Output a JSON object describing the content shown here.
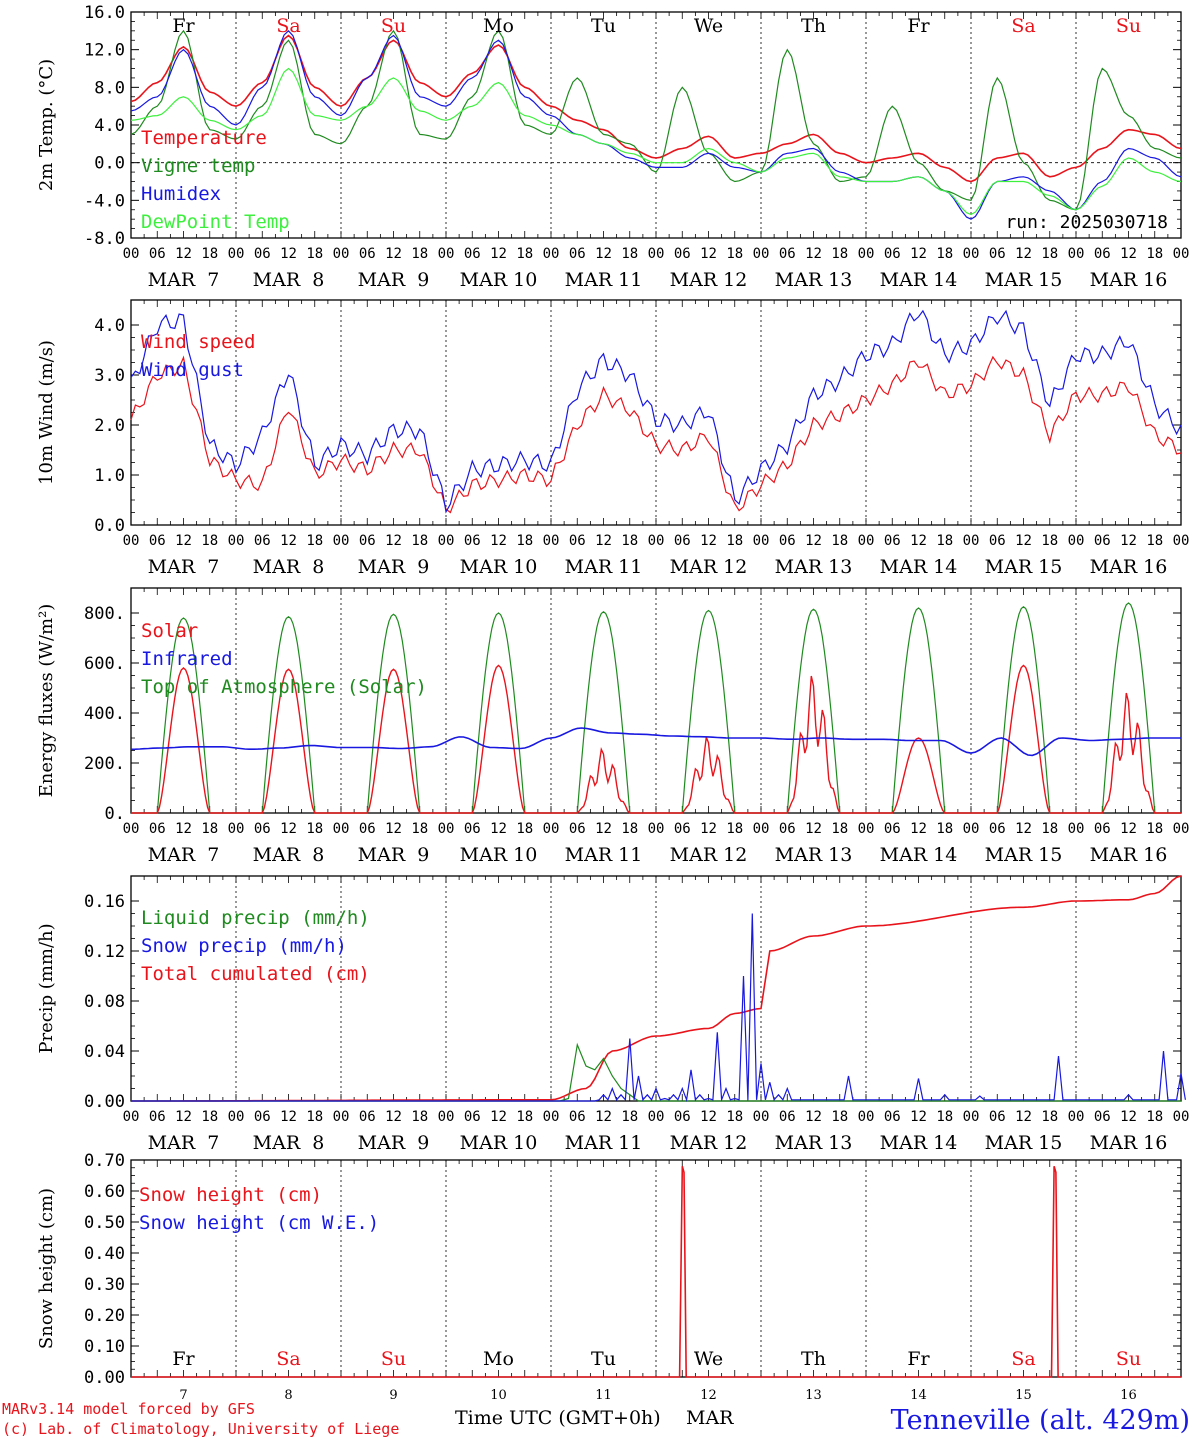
{
  "colors": {
    "red": "#e8141c",
    "green": "#1f8a1f",
    "blue": "#1818e0",
    "lightgreen": "#3ef03e",
    "black": "#000000"
  },
  "days": {
    "hour_ticks": [
      "00",
      "06",
      "12",
      "18",
      "00",
      "06",
      "12",
      "18",
      "00",
      "06",
      "12",
      "18",
      "00",
      "06",
      "12",
      "18",
      "00",
      "06",
      "12",
      "18",
      "00",
      "06",
      "12",
      "18",
      "00",
      "06",
      "12",
      "18",
      "00",
      "06",
      "12",
      "18",
      "00",
      "06",
      "12",
      "18",
      "00",
      "06",
      "12",
      "18",
      "00"
    ],
    "date_labels": [
      "MAR  7",
      "MAR  8",
      "MAR  9",
      "MAR 10",
      "MAR 11",
      "MAR 12",
      "MAR 13",
      "MAR 14",
      "MAR 15",
      "MAR 16"
    ],
    "weekday_labels": [
      "Fr",
      "Sa",
      "Su",
      "Mo",
      "Tu",
      "We",
      "Th",
      "Fr",
      "Sa",
      "Su"
    ],
    "weekday_colors": [
      "black",
      "red",
      "red",
      "black",
      "black",
      "black",
      "black",
      "black",
      "red",
      "red"
    ],
    "day_numbers": [
      "7",
      "8",
      "9",
      "10",
      "11",
      "12",
      "13",
      "14",
      "15",
      "16"
    ]
  },
  "footer": {
    "model_line": "MARv3.14 model forced by GFS",
    "credit_line": "(c) Lab. of Climatology, University of Liege",
    "xlabel": "Time UTC (GMT+0h)",
    "month": "MAR",
    "station": "Tenneville (alt. 429m)"
  },
  "chart_data": [
    {
      "type": "line",
      "ylabel": "2m Temp. (°C)",
      "ylim": [
        -8,
        16
      ],
      "yticks": [
        "16.0",
        "12.0",
        "8.0",
        "4.0",
        "0.0",
        "-4.0",
        "-8.0"
      ],
      "annotation": "run: 2025030718",
      "legend": [
        "Temperature",
        "Vigne temp",
        "Humidex",
        "DewPoint Temp"
      ],
      "x_hours": [
        0,
        6,
        12,
        18,
        24,
        30,
        36,
        42,
        48,
        54,
        60,
        66,
        72,
        78,
        84,
        90,
        96,
        102,
        108,
        114,
        120,
        126,
        132,
        138,
        144,
        150,
        156,
        162,
        168,
        174,
        180,
        186,
        192,
        198,
        204,
        210,
        216,
        222,
        228,
        234,
        240
      ],
      "series": [
        {
          "name": "Temperature",
          "color": "red",
          "values": [
            6.5,
            8.5,
            12.3,
            7.5,
            6.0,
            8.5,
            13.5,
            8.0,
            6.0,
            9.0,
            13.0,
            8.5,
            7.0,
            9.5,
            12.5,
            8.0,
            6.0,
            4.5,
            3.5,
            1.5,
            0.5,
            1.5,
            2.8,
            0.5,
            1.0,
            2.0,
            3.0,
            1.0,
            0.0,
            0.5,
            1.0,
            -0.5,
            -2.0,
            0.5,
            1.0,
            -1.5,
            -0.5,
            1.5,
            3.5,
            3.0,
            1.5
          ]
        },
        {
          "name": "Vigne temp",
          "color": "green",
          "values": [
            3.0,
            6.0,
            14.0,
            3.5,
            2.5,
            6.0,
            13.0,
            3.0,
            2.0,
            6.0,
            14.0,
            3.0,
            2.5,
            7.0,
            14.0,
            4.0,
            3.0,
            9.0,
            3.0,
            2.0,
            -1.0,
            8.0,
            1.0,
            -2.0,
            -1.0,
            12.0,
            2.0,
            -2.0,
            -1.5,
            6.0,
            0.0,
            -3.0,
            -4.0,
            9.0,
            0.0,
            -4.0,
            -5.0,
            10.0,
            5.0,
            1.5,
            0.5
          ]
        },
        {
          "name": "Humidex",
          "color": "blue",
          "values": [
            5.5,
            7.0,
            12.0,
            6.0,
            4.0,
            8.0,
            14.0,
            7.0,
            5.0,
            9.0,
            13.5,
            7.0,
            6.0,
            9.0,
            13.0,
            7.0,
            5.0,
            3.0,
            2.0,
            0.5,
            -0.5,
            -0.5,
            1.0,
            -0.5,
            -1.0,
            1.0,
            1.5,
            -1.0,
            -2.0,
            -2.0,
            -1.5,
            -3.0,
            -6.0,
            -2.0,
            -1.5,
            -3.0,
            -5.0,
            -2.0,
            1.5,
            0.5,
            -1.5
          ]
        },
        {
          "name": "DewPoint Temp",
          "color": "lightgreen",
          "values": [
            4.5,
            5.0,
            7.0,
            4.5,
            3.5,
            5.0,
            10.0,
            5.0,
            4.5,
            6.0,
            9.0,
            5.5,
            4.5,
            6.0,
            8.5,
            5.0,
            4.0,
            3.0,
            2.0,
            1.0,
            0.0,
            0.0,
            1.5,
            0.0,
            -1.0,
            0.5,
            1.0,
            -1.5,
            -2.0,
            -2.0,
            -1.5,
            -3.0,
            -5.5,
            -2.0,
            -2.0,
            -3.5,
            -5.0,
            -2.5,
            0.5,
            -1.0,
            -2.0
          ]
        }
      ]
    },
    {
      "type": "line",
      "ylabel": "10m Wind (m/s)",
      "ylim": [
        0,
        4.5
      ],
      "yticks": [
        "4.0",
        "3.0",
        "2.0",
        "1.0",
        "0.0"
      ],
      "legend": [
        "Wind speed",
        "Wind gust"
      ],
      "x_hours": [
        0,
        6,
        12,
        18,
        24,
        30,
        36,
        42,
        48,
        54,
        60,
        66,
        72,
        78,
        84,
        90,
        96,
        102,
        108,
        114,
        120,
        126,
        132,
        138,
        144,
        150,
        156,
        162,
        168,
        174,
        180,
        186,
        192,
        198,
        204,
        210,
        216,
        222,
        228,
        234,
        240
      ],
      "series": [
        {
          "name": "Wind speed",
          "color": "red",
          "values": [
            2.1,
            3.0,
            3.2,
            1.3,
            0.9,
            0.8,
            2.4,
            1.0,
            1.3,
            1.1,
            1.5,
            1.5,
            0.3,
            0.8,
            0.9,
            1.0,
            0.9,
            2.0,
            2.6,
            2.3,
            1.6,
            1.5,
            1.8,
            0.3,
            0.8,
            1.2,
            2.0,
            2.2,
            2.5,
            2.8,
            3.3,
            2.6,
            2.8,
            3.3,
            3.0,
            1.8,
            2.6,
            2.6,
            2.8,
            1.8,
            1.5
          ]
        },
        {
          "name": "Wind gust",
          "color": "blue",
          "values": [
            2.8,
            4.0,
            4.1,
            1.6,
            1.2,
            1.8,
            3.1,
            1.2,
            1.6,
            1.4,
            1.9,
            1.9,
            0.4,
            1.1,
            1.2,
            1.3,
            1.2,
            2.7,
            3.3,
            3.0,
            2.1,
            2.0,
            2.3,
            0.5,
            1.1,
            1.6,
            2.6,
            2.9,
            3.4,
            3.6,
            4.3,
            3.4,
            3.6,
            4.2,
            3.9,
            2.4,
            3.4,
            3.4,
            3.7,
            2.4,
            1.9
          ]
        }
      ]
    },
    {
      "type": "line",
      "ylabel": "Energy fluxes (W/m²)",
      "ylim": [
        0,
        900
      ],
      "yticks": [
        "800.",
        "600.",
        "400.",
        "200.",
        "0."
      ],
      "legend": [
        "Solar",
        "Infrared",
        "Top of Atmosphere (Solar)"
      ],
      "solar_noon_peaks": [
        580,
        575,
        575,
        590,
        260,
        310,
        560,
        300,
        590,
        490
      ],
      "toa_noon_peaks": [
        780,
        785,
        795,
        800,
        805,
        810,
        815,
        820,
        825,
        840
      ],
      "infrared": [
        255,
        260,
        265,
        265,
        255,
        260,
        270,
        262,
        262,
        258,
        265,
        305,
        262,
        258,
        300,
        340,
        320,
        315,
        308,
        305,
        300,
        300,
        295,
        300,
        295,
        295,
        290,
        290,
        240,
        300,
        230,
        300,
        290,
        295,
        300,
        300
      ]
    },
    {
      "type": "line",
      "ylabel": "Precip (mm/h)",
      "ylim": [
        0,
        0.18
      ],
      "yticks": [
        "0.16",
        "0.12",
        "0.08",
        "0.04",
        "0.00"
      ],
      "legend": [
        "Liquid precip (mm/h)",
        "Snow precip (mm/h)",
        "Total cumulated (cm)"
      ],
      "cumulative_hours": [
        0,
        96,
        104,
        110,
        120,
        132,
        138,
        144,
        146,
        156,
        168,
        204,
        216,
        228,
        234,
        240
      ],
      "cumulative_values": [
        0,
        0.001,
        0.01,
        0.04,
        0.052,
        0.058,
        0.07,
        0.074,
        0.12,
        0.132,
        0.14,
        0.155,
        0.16,
        0.161,
        0.166,
        0.18
      ],
      "liquid_hours": [
        100,
        102,
        104,
        106,
        108,
        110,
        112,
        114,
        116
      ],
      "liquid_values": [
        0.002,
        0.045,
        0.028,
        0.025,
        0.034,
        0.02,
        0.01,
        0.005,
        0.0
      ],
      "snow_hours": [
        108,
        110,
        112,
        114,
        116,
        118,
        120,
        122,
        124,
        126,
        128,
        130,
        132,
        134,
        136,
        138,
        140,
        142,
        144,
        146,
        148,
        150,
        164,
        180,
        186,
        194,
        212,
        228,
        236,
        240
      ],
      "snow_values": [
        0.005,
        0.01,
        0.005,
        0.05,
        0.02,
        0.005,
        0.01,
        0.002,
        0.005,
        0.01,
        0.025,
        0.005,
        0.002,
        0.055,
        0.01,
        0.002,
        0.1,
        0.15,
        0.03,
        0.015,
        0.005,
        0.01,
        0.02,
        0.018,
        0.005,
        0.004,
        0.036,
        0.005,
        0.04,
        0.022
      ]
    },
    {
      "type": "line",
      "ylabel": "Snow height (cm)",
      "ylim": [
        0,
        0.7
      ],
      "yticks": [
        "0.70",
        "0.60",
        "0.50",
        "0.40",
        "0.30",
        "0.20",
        "0.10",
        "0.00"
      ],
      "legend": [
        "Snow height (cm)",
        "Snow height (cm W.E.)"
      ],
      "snow_spikes_hours": [
        126,
        211
      ],
      "snow_spikes_values": [
        0.68,
        0.68
      ]
    }
  ]
}
